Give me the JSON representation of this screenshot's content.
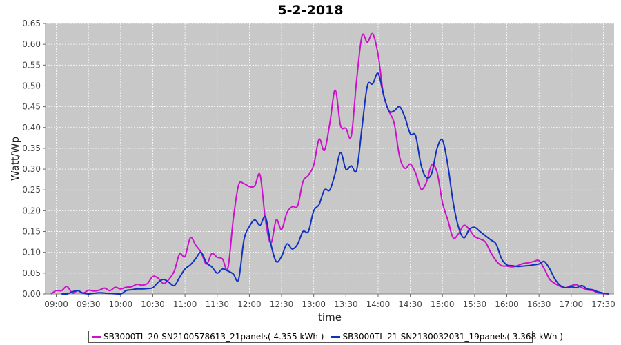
{
  "colors": {
    "plot_background": "#c8c8c8",
    "grid": "#ffffff",
    "series_1": "#cc10cc",
    "series_2": "#1030c0"
  },
  "chart_data": {
    "type": "line",
    "title": "5-2-2018",
    "xlabel": "time",
    "ylabel": "Watt/Wp",
    "xlim": [
      "08:50",
      "17:40"
    ],
    "ylim": [
      0,
      0.65
    ],
    "grid": true,
    "legend_position": "bottom",
    "y_ticks": [
      "0.00",
      "0.05",
      "0.10",
      "0.15",
      "0.20",
      "0.25",
      "0.30",
      "0.35",
      "0.40",
      "0.45",
      "0.50",
      "0.55",
      "0.60",
      "0.65"
    ],
    "x_ticks": [
      "09:00",
      "09:30",
      "10:00",
      "10:30",
      "11:00",
      "11:30",
      "12:00",
      "12:30",
      "13:00",
      "13:30",
      "14:00",
      "14:30",
      "15:00",
      "15:30",
      "16:00",
      "16:30",
      "17:00",
      "17:30"
    ],
    "series": [
      {
        "name": "SB3000TL-20-SN2100578613_21panels( 4.355 kWh )",
        "color": "#cc10cc",
        "points": [
          [
            "08:55",
            0.0
          ],
          [
            "09:00",
            0.008
          ],
          [
            "09:05",
            0.008
          ],
          [
            "09:10",
            0.018
          ],
          [
            "09:15",
            0.002
          ],
          [
            "09:20",
            0.008
          ],
          [
            "09:25",
            0.002
          ],
          [
            "09:30",
            0.009
          ],
          [
            "09:35",
            0.007
          ],
          [
            "09:40",
            0.009
          ],
          [
            "09:45",
            0.014
          ],
          [
            "09:50",
            0.008
          ],
          [
            "09:55",
            0.016
          ],
          [
            "10:00",
            0.012
          ],
          [
            "10:05",
            0.016
          ],
          [
            "10:10",
            0.017
          ],
          [
            "10:15",
            0.023
          ],
          [
            "10:20",
            0.021
          ],
          [
            "10:25",
            0.025
          ],
          [
            "10:30",
            0.042
          ],
          [
            "10:35",
            0.038
          ],
          [
            "10:40",
            0.025
          ],
          [
            "10:45",
            0.035
          ],
          [
            "10:50",
            0.055
          ],
          [
            "10:55",
            0.096
          ],
          [
            "11:00",
            0.09
          ],
          [
            "11:05",
            0.135
          ],
          [
            "11:10",
            0.117
          ],
          [
            "11:15",
            0.1
          ],
          [
            "11:20",
            0.072
          ],
          [
            "11:25",
            0.097
          ],
          [
            "11:30",
            0.088
          ],
          [
            "11:35",
            0.084
          ],
          [
            "11:40",
            0.062
          ],
          [
            "11:45",
            0.18
          ],
          [
            "11:50",
            0.262
          ],
          [
            "11:55",
            0.265
          ],
          [
            "12:00",
            0.258
          ],
          [
            "12:05",
            0.26
          ],
          [
            "12:10",
            0.286
          ],
          [
            "12:15",
            0.178
          ],
          [
            "12:20",
            0.122
          ],
          [
            "12:25",
            0.178
          ],
          [
            "12:30",
            0.155
          ],
          [
            "12:35",
            0.195
          ],
          [
            "12:40",
            0.21
          ],
          [
            "12:45",
            0.212
          ],
          [
            "12:50",
            0.27
          ],
          [
            "12:55",
            0.285
          ],
          [
            "13:00",
            0.31
          ],
          [
            "13:05",
            0.372
          ],
          [
            "13:10",
            0.345
          ],
          [
            "13:15",
            0.41
          ],
          [
            "13:20",
            0.49
          ],
          [
            "13:25",
            0.405
          ],
          [
            "13:30",
            0.398
          ],
          [
            "13:35",
            0.38
          ],
          [
            "13:40",
            0.515
          ],
          [
            "13:45",
            0.62
          ],
          [
            "13:50",
            0.605
          ],
          [
            "13:55",
            0.625
          ],
          [
            "14:00",
            0.575
          ],
          [
            "14:05",
            0.48
          ],
          [
            "14:10",
            0.44
          ],
          [
            "14:15",
            0.41
          ],
          [
            "14:20",
            0.33
          ],
          [
            "14:25",
            0.302
          ],
          [
            "14:30",
            0.312
          ],
          [
            "14:35",
            0.29
          ],
          [
            "14:40",
            0.252
          ],
          [
            "14:45",
            0.268
          ],
          [
            "14:50",
            0.31
          ],
          [
            "14:55",
            0.292
          ],
          [
            "15:00",
            0.22
          ],
          [
            "15:05",
            0.178
          ],
          [
            "15:10",
            0.135
          ],
          [
            "15:15",
            0.145
          ],
          [
            "15:20",
            0.165
          ],
          [
            "15:25",
            0.155
          ],
          [
            "15:30",
            0.138
          ],
          [
            "15:35",
            0.132
          ],
          [
            "15:40",
            0.125
          ],
          [
            "15:45",
            0.1
          ],
          [
            "15:50",
            0.08
          ],
          [
            "15:55",
            0.068
          ],
          [
            "16:00",
            0.067
          ],
          [
            "16:05",
            0.065
          ],
          [
            "16:10",
            0.068
          ],
          [
            "16:15",
            0.073
          ],
          [
            "16:20",
            0.075
          ],
          [
            "16:25",
            0.078
          ],
          [
            "16:30",
            0.08
          ],
          [
            "16:35",
            0.06
          ],
          [
            "16:40",
            0.035
          ],
          [
            "16:45",
            0.025
          ],
          [
            "16:50",
            0.018
          ],
          [
            "16:55",
            0.015
          ],
          [
            "17:00",
            0.02
          ],
          [
            "17:05",
            0.022
          ],
          [
            "17:10",
            0.015
          ],
          [
            "17:15",
            0.01
          ],
          [
            "17:20",
            0.008
          ],
          [
            "17:25",
            0.003
          ],
          [
            "17:30",
            0.001
          ],
          [
            "17:35",
            0.0
          ]
        ]
      },
      {
        "name": "SB3000TL-21-SN2130032031_19panels( 3.368 kWh )",
        "color": "#1030c0",
        "points": [
          [
            "09:05",
            0.0
          ],
          [
            "09:10",
            0.0
          ],
          [
            "09:15",
            0.005
          ],
          [
            "09:20",
            0.008
          ],
          [
            "09:25",
            0.002
          ],
          [
            "09:30",
            0.0
          ],
          [
            "09:40",
            0.003
          ],
          [
            "09:50",
            0.001
          ],
          [
            "10:00",
            0.0
          ],
          [
            "10:05",
            0.008
          ],
          [
            "10:10",
            0.01
          ],
          [
            "10:15",
            0.012
          ],
          [
            "10:20",
            0.012
          ],
          [
            "10:25",
            0.013
          ],
          [
            "10:30",
            0.015
          ],
          [
            "10:35",
            0.028
          ],
          [
            "10:40",
            0.035
          ],
          [
            "10:45",
            0.028
          ],
          [
            "10:50",
            0.02
          ],
          [
            "10:55",
            0.04
          ],
          [
            "11:00",
            0.06
          ],
          [
            "11:05",
            0.07
          ],
          [
            "11:10",
            0.085
          ],
          [
            "11:15",
            0.1
          ],
          [
            "11:20",
            0.075
          ],
          [
            "11:25",
            0.065
          ],
          [
            "11:30",
            0.05
          ],
          [
            "11:35",
            0.06
          ],
          [
            "11:40",
            0.055
          ],
          [
            "11:45",
            0.048
          ],
          [
            "11:50",
            0.035
          ],
          [
            "11:55",
            0.13
          ],
          [
            "12:00",
            0.162
          ],
          [
            "12:05",
            0.178
          ],
          [
            "12:10",
            0.165
          ],
          [
            "12:15",
            0.185
          ],
          [
            "12:20",
            0.12
          ],
          [
            "12:25",
            0.078
          ],
          [
            "12:30",
            0.09
          ],
          [
            "12:35",
            0.12
          ],
          [
            "12:40",
            0.108
          ],
          [
            "12:45",
            0.12
          ],
          [
            "12:50",
            0.15
          ],
          [
            "12:55",
            0.15
          ],
          [
            "13:00",
            0.2
          ],
          [
            "13:05",
            0.215
          ],
          [
            "13:10",
            0.25
          ],
          [
            "13:15",
            0.25
          ],
          [
            "13:20",
            0.29
          ],
          [
            "13:25",
            0.34
          ],
          [
            "13:30",
            0.3
          ],
          [
            "13:35",
            0.308
          ],
          [
            "13:40",
            0.298
          ],
          [
            "13:45",
            0.4
          ],
          [
            "13:50",
            0.5
          ],
          [
            "13:55",
            0.505
          ],
          [
            "14:00",
            0.53
          ],
          [
            "14:05",
            0.48
          ],
          [
            "14:10",
            0.44
          ],
          [
            "14:15",
            0.44
          ],
          [
            "14:20",
            0.45
          ],
          [
            "14:25",
            0.425
          ],
          [
            "14:30",
            0.385
          ],
          [
            "14:35",
            0.38
          ],
          [
            "14:40",
            0.31
          ],
          [
            "14:45",
            0.28
          ],
          [
            "14:50",
            0.29
          ],
          [
            "14:55",
            0.35
          ],
          [
            "15:00",
            0.37
          ],
          [
            "15:05",
            0.31
          ],
          [
            "15:10",
            0.22
          ],
          [
            "15:15",
            0.16
          ],
          [
            "15:20",
            0.135
          ],
          [
            "15:25",
            0.155
          ],
          [
            "15:30",
            0.16
          ],
          [
            "15:35",
            0.15
          ],
          [
            "15:40",
            0.14
          ],
          [
            "15:45",
            0.13
          ],
          [
            "15:50",
            0.12
          ],
          [
            "15:55",
            0.085
          ],
          [
            "16:00",
            0.07
          ],
          [
            "16:05",
            0.068
          ],
          [
            "16:10",
            0.066
          ],
          [
            "16:15",
            0.067
          ],
          [
            "16:20",
            0.068
          ],
          [
            "16:25",
            0.07
          ],
          [
            "16:30",
            0.072
          ],
          [
            "16:35",
            0.078
          ],
          [
            "16:40",
            0.06
          ],
          [
            "16:45",
            0.035
          ],
          [
            "16:50",
            0.02
          ],
          [
            "16:55",
            0.015
          ],
          [
            "17:00",
            0.017
          ],
          [
            "17:05",
            0.015
          ],
          [
            "17:10",
            0.02
          ],
          [
            "17:15",
            0.012
          ],
          [
            "17:20",
            0.01
          ],
          [
            "17:25",
            0.005
          ],
          [
            "17:30",
            0.002
          ],
          [
            "17:35",
            0.0
          ]
        ]
      }
    ]
  }
}
